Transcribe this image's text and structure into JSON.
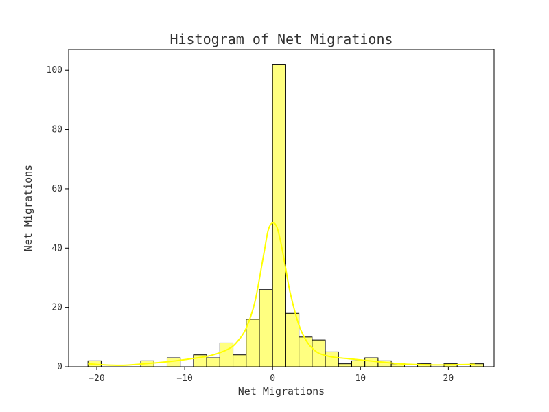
{
  "chart_data": {
    "type": "bar",
    "title": "Histogram of Net Migrations",
    "xlabel": "Net Migrations",
    "ylabel": "Net Migrations",
    "xlim": [
      -23.2,
      25.2
    ],
    "ylim": [
      0,
      107
    ],
    "x_ticks": [
      -20,
      -10,
      0,
      10,
      20
    ],
    "x_tick_labels": [
      "−20",
      "−10",
      "0",
      "10",
      "20"
    ],
    "y_ticks": [
      0,
      20,
      40,
      60,
      80,
      100
    ],
    "y_tick_labels": [
      "0",
      "20",
      "40",
      "60",
      "80",
      "100"
    ],
    "grid": false,
    "legend": "none",
    "bar_color": "#ffff80",
    "bar_edge_color": "#000000",
    "kde_color": "#ffff00",
    "bins": [
      {
        "x0": -21.0,
        "x1": -19.5,
        "count": 2
      },
      {
        "x0": -19.5,
        "x1": -18.0,
        "count": 0
      },
      {
        "x0": -18.0,
        "x1": -16.5,
        "count": 0
      },
      {
        "x0": -16.5,
        "x1": -15.0,
        "count": 0
      },
      {
        "x0": -15.0,
        "x1": -13.5,
        "count": 2
      },
      {
        "x0": -13.5,
        "x1": -12.0,
        "count": 0
      },
      {
        "x0": -12.0,
        "x1": -10.5,
        "count": 3
      },
      {
        "x0": -10.5,
        "x1": -9.0,
        "count": 0
      },
      {
        "x0": -9.0,
        "x1": -7.5,
        "count": 4
      },
      {
        "x0": -7.5,
        "x1": -6.0,
        "count": 3
      },
      {
        "x0": -6.0,
        "x1": -4.5,
        "count": 8
      },
      {
        "x0": -4.5,
        "x1": -3.0,
        "count": 4
      },
      {
        "x0": -3.0,
        "x1": -1.5,
        "count": 16
      },
      {
        "x0": -1.5,
        "x1": 0.0,
        "count": 26
      },
      {
        "x0": 0.0,
        "x1": 1.5,
        "count": 102
      },
      {
        "x0": 1.5,
        "x1": 3.0,
        "count": 18
      },
      {
        "x0": 3.0,
        "x1": 4.5,
        "count": 10
      },
      {
        "x0": 4.5,
        "x1": 6.0,
        "count": 9
      },
      {
        "x0": 6.0,
        "x1": 7.5,
        "count": 5
      },
      {
        "x0": 7.5,
        "x1": 9.0,
        "count": 1
      },
      {
        "x0": 9.0,
        "x1": 10.5,
        "count": 2
      },
      {
        "x0": 10.5,
        "x1": 12.0,
        "count": 3
      },
      {
        "x0": 12.0,
        "x1": 13.5,
        "count": 2
      },
      {
        "x0": 13.5,
        "x1": 15.0,
        "count": 1
      },
      {
        "x0": 15.0,
        "x1": 16.5,
        "count": 0
      },
      {
        "x0": 16.5,
        "x1": 18.0,
        "count": 1
      },
      {
        "x0": 18.0,
        "x1": 19.5,
        "count": 0
      },
      {
        "x0": 19.5,
        "x1": 21.0,
        "count": 1
      },
      {
        "x0": 21.0,
        "x1": 22.5,
        "count": 0
      },
      {
        "x0": 22.5,
        "x1": 24.0,
        "count": 1
      }
    ],
    "kde_curve": {
      "x": [
        -21,
        -19,
        -17,
        -15,
        -13,
        -11,
        -9,
        -7,
        -5,
        -4,
        -3,
        -2,
        -1,
        -0.5,
        0,
        0.5,
        1,
        1.5,
        2,
        3,
        4,
        5,
        6,
        7,
        9,
        11,
        13,
        15,
        17,
        19,
        21,
        23
      ],
      "y": [
        1.0,
        0.6,
        0.5,
        0.9,
        1.4,
        2.0,
        2.8,
        3.8,
        6.0,
        8.5,
        13.0,
        22.0,
        38.0,
        46.0,
        48.5,
        47.0,
        41.0,
        33.0,
        25.0,
        14.0,
        8.0,
        5.0,
        3.8,
        3.2,
        2.6,
        2.0,
        1.4,
        0.9,
        0.7,
        0.6,
        0.7,
        0.8
      ]
    }
  }
}
